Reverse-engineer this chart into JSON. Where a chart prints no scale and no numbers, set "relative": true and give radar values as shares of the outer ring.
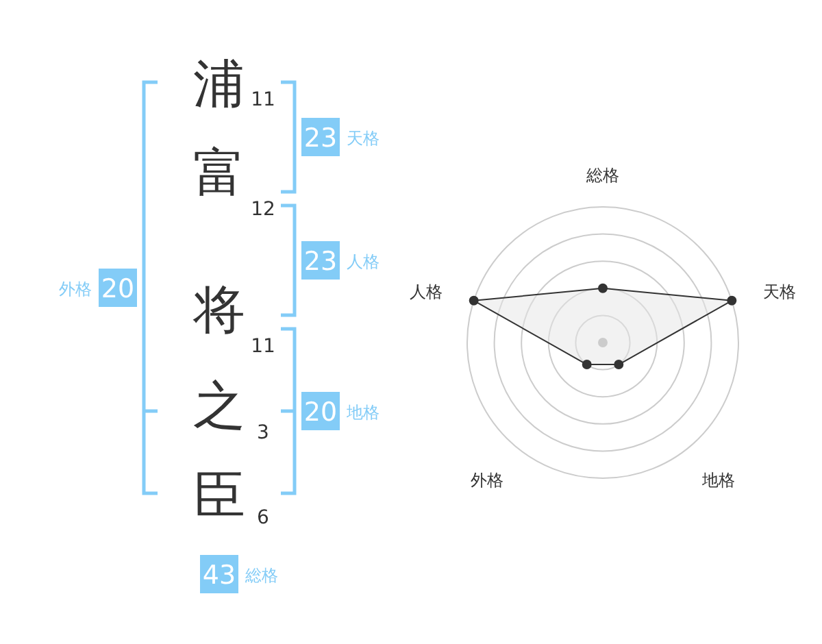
{
  "chart_data": [
    {
      "type": "other",
      "categories": [
        "浦",
        "富",
        "将",
        "之",
        "臣"
      ],
      "values": [
        11,
        12,
        11,
        3,
        6
      ],
      "data_labels": true,
      "color": "#83ccf7",
      "annotations": [
        "23",
        "天格",
        "23",
        "人格",
        "20",
        "地格",
        "20",
        "外格",
        "43",
        "総格"
      ]
    },
    {
      "type": "radar",
      "relative": true,
      "categories": [
        "総格",
        "天格",
        "地格",
        "外格",
        "人格"
      ],
      "series": [
        {
          "color": "#333333",
          "values": [
            0.4,
            1,
            0.2,
            0.2,
            1
          ]
        }
      ],
      "marker": "circle",
      "grid": true
    }
  ]
}
